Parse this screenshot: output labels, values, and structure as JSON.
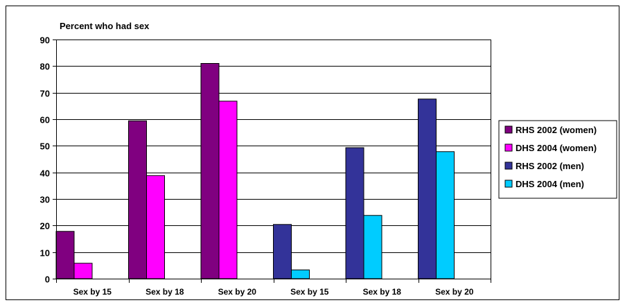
{
  "chart_data": {
    "type": "bar",
    "title": "Percent who had sex",
    "xlabel": "",
    "ylabel": "",
    "categories": [
      "Sex by 15",
      "Sex by 18",
      "Sex by 20",
      "Sex by 15",
      "Sex by 18",
      "Sex by 20"
    ],
    "series": [
      {
        "name": "RHS 2002 (women)",
        "color": "#800080",
        "values": [
          17.8,
          59.4,
          81.0,
          null,
          null,
          null
        ]
      },
      {
        "name": "DHS 2004 (women)",
        "color": "#ff00ff",
        "values": [
          5.8,
          38.8,
          66.8,
          null,
          null,
          null
        ]
      },
      {
        "name": "RHS 2002 (men)",
        "color": "#333399",
        "values": [
          null,
          null,
          null,
          20.4,
          49.3,
          67.6
        ]
      },
      {
        "name": "DHS 2004 (men)",
        "color": "#00ccff",
        "values": [
          null,
          null,
          null,
          3.3,
          23.8,
          47.8
        ]
      }
    ],
    "ylim": [
      0,
      90
    ],
    "yticks": [
      0,
      10,
      20,
      30,
      40,
      50,
      60,
      70,
      80,
      90
    ],
    "grid": true,
    "legend_position": "right"
  }
}
